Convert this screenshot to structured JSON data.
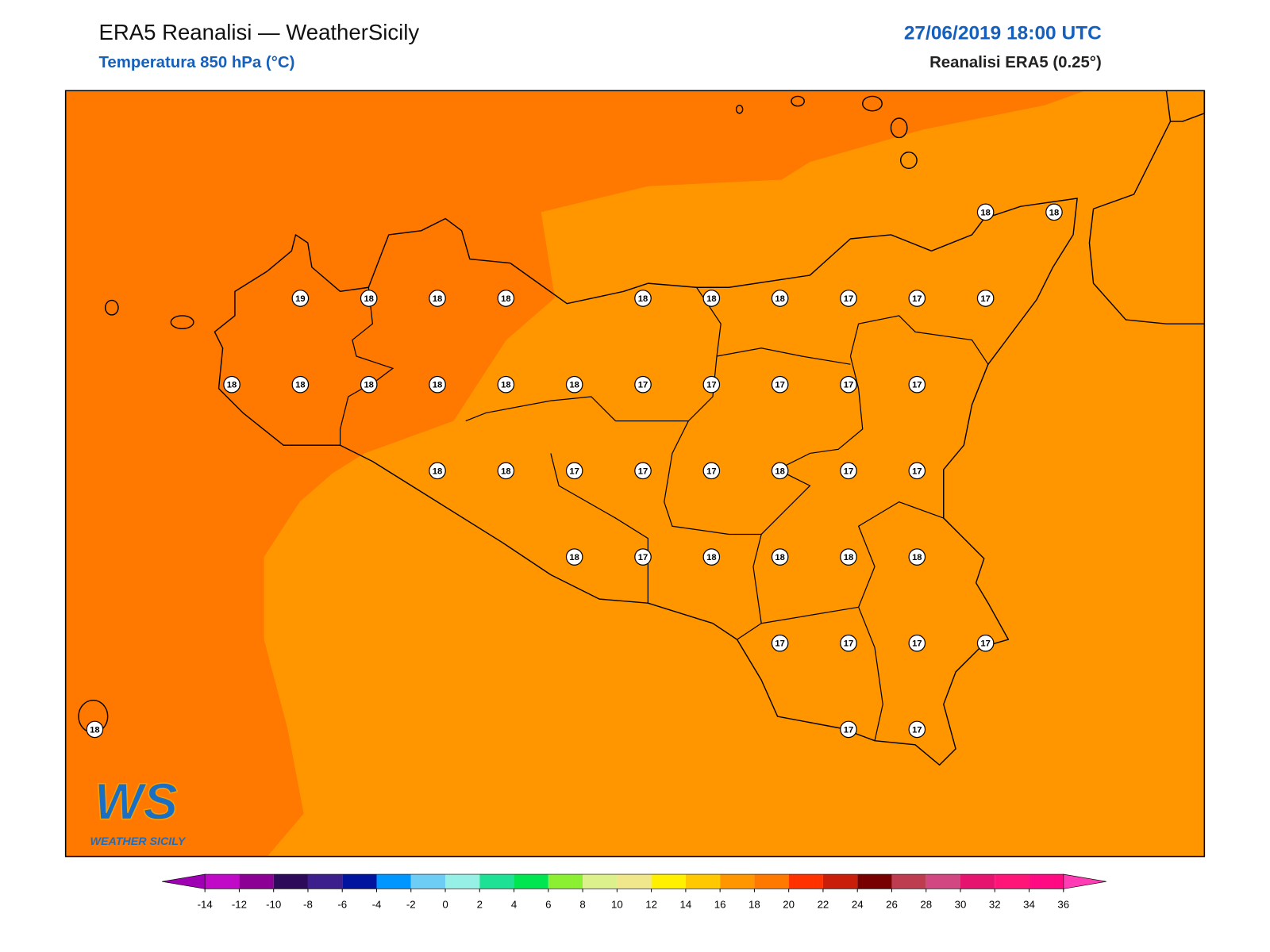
{
  "header": {
    "title": "ERA5 Reanalisi — WeatherSicily",
    "subtitle": "Temperatura 850 hPa (°C)",
    "datetime": "27/06/2019 18:00 UTC",
    "source": "Reanalisi ERA5 (0.25°)"
  },
  "grid_values": [
    [
      null,
      null,
      null,
      null,
      null,
      null,
      null,
      null,
      null,
      null,
      null,
      null,
      null,
      18,
      18
    ],
    [
      null,
      null,
      null,
      19,
      18,
      18,
      18,
      null,
      18,
      18,
      18,
      17,
      17,
      17,
      null
    ],
    [
      null,
      null,
      18,
      18,
      18,
      18,
      18,
      18,
      17,
      17,
      17,
      17,
      17,
      null,
      null
    ],
    [
      null,
      null,
      null,
      null,
      null,
      18,
      18,
      17,
      17,
      17,
      18,
      17,
      17,
      null,
      null
    ],
    [
      null,
      null,
      null,
      null,
      null,
      null,
      null,
      18,
      17,
      18,
      18,
      18,
      18,
      null,
      null
    ],
    [
      null,
      null,
      null,
      null,
      null,
      null,
      null,
      null,
      null,
      null,
      17,
      17,
      17,
      17,
      null
    ],
    [
      18,
      null,
      null,
      null,
      null,
      null,
      null,
      null,
      null,
      null,
      null,
      17,
      17,
      null,
      null
    ]
  ],
  "colorbar": {
    "lim": [
      -14,
      36
    ],
    "ticks": [
      -14,
      -12,
      -10,
      -8,
      -6,
      -4,
      -2,
      0,
      2,
      4,
      6,
      8,
      10,
      12,
      14,
      16,
      18,
      20,
      22,
      24,
      26,
      28,
      30,
      32,
      34,
      36
    ],
    "colors": [
      "#c00ac8",
      "#8c0096",
      "#2d0a5a",
      "#3c1e8c",
      "#0014a0",
      "#0096ff",
      "#6ecdf5",
      "#96f0e6",
      "#1ee196",
      "#00e650",
      "#8cf032",
      "#dcf08c",
      "#f0e68c",
      "#fff000",
      "#ffc800",
      "#ff9600",
      "#ff7800",
      "#ff3200",
      "#c81e0a",
      "#780000",
      "#be3c50",
      "#d24682",
      "#e6146e",
      "#ff1478",
      "#ff0a82"
    ],
    "extend_colors": [
      "#a000b4",
      "#ff3cb4"
    ]
  },
  "logo": {
    "mark": "WS",
    "name": "WEATHER SICILY"
  }
}
